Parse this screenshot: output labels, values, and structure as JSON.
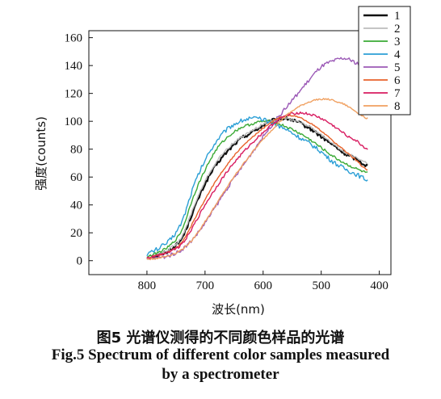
{
  "chart_data": {
    "type": "line",
    "xlabel": "波长(nm)",
    "ylabel": "强度(counts)",
    "xlim": [
      900,
      380
    ],
    "ylim": [
      -10,
      165
    ],
    "x_ticks": [
      800,
      700,
      600,
      500,
      400
    ],
    "y_ticks": [
      0,
      20,
      40,
      60,
      80,
      100,
      120,
      140,
      160
    ],
    "x_reversed": true,
    "legend_position": "top-right",
    "grid": false,
    "series": [
      {
        "name": "1",
        "color": "#111111",
        "width": 2.2,
        "noise": 1.3,
        "x": [
          800,
          780,
          760,
          740,
          720,
          700,
          680,
          660,
          640,
          620,
          600,
          580,
          560,
          540,
          520,
          500,
          480,
          460,
          440,
          420
        ],
        "y": [
          2,
          4,
          8,
          16,
          36,
          55,
          69,
          79,
          87,
          92,
          97,
          101,
          102,
          99,
          95,
          89,
          83,
          77,
          73,
          68
        ]
      },
      {
        "name": "2",
        "color": "#bdbdbd",
        "width": 1.4,
        "noise": 0.8,
        "x": [
          800,
          780,
          760,
          740,
          720,
          700,
          680,
          660,
          640,
          620,
          600,
          580,
          560,
          540,
          520,
          500,
          480,
          460,
          440,
          420
        ],
        "y": [
          3,
          5,
          9,
          17,
          38,
          57,
          71,
          81,
          88,
          93,
          98,
          101,
          102,
          100,
          96,
          90,
          84,
          78,
          74,
          70
        ]
      },
      {
        "name": "3",
        "color": "#3aaa35",
        "width": 1.4,
        "noise": 0.9,
        "x": [
          800,
          780,
          760,
          740,
          720,
          700,
          680,
          660,
          640,
          620,
          600,
          580,
          560,
          540,
          520,
          500,
          480,
          460,
          440,
          420
        ],
        "y": [
          3,
          6,
          11,
          22,
          46,
          65,
          80,
          89,
          95,
          98,
          100,
          99,
          96,
          92,
          87,
          81,
          75,
          70,
          66,
          63
        ]
      },
      {
        "name": "4",
        "color": "#2b9fd6",
        "width": 1.4,
        "noise": 1.6,
        "x": [
          800,
          780,
          760,
          740,
          720,
          700,
          680,
          660,
          640,
          620,
          600,
          580,
          560,
          540,
          520,
          500,
          480,
          460,
          440,
          420
        ],
        "y": [
          5,
          9,
          15,
          28,
          53,
          72,
          86,
          95,
          100,
          102,
          101,
          98,
          94,
          89,
          84,
          78,
          71,
          66,
          62,
          58
        ]
      },
      {
        "name": "5",
        "color": "#9b59b6",
        "width": 1.4,
        "noise": 1.3,
        "x": [
          800,
          780,
          760,
          740,
          720,
          700,
          680,
          660,
          640,
          620,
          600,
          580,
          560,
          540,
          520,
          500,
          480,
          460,
          440,
          420
        ],
        "y": [
          1,
          2,
          4,
          8,
          16,
          27,
          40,
          53,
          65,
          77,
          89,
          100,
          110,
          120,
          130,
          139,
          143,
          145,
          142,
          138
        ]
      },
      {
        "name": "6",
        "color": "#e8632b",
        "width": 1.4,
        "noise": 0.5,
        "x": [
          800,
          780,
          760,
          740,
          720,
          700,
          680,
          660,
          640,
          620,
          600,
          580,
          560,
          540,
          520,
          500,
          480,
          460,
          440,
          420
        ],
        "y": [
          2,
          4,
          7,
          13,
          28,
          44,
          58,
          70,
          80,
          88,
          95,
          101,
          104,
          103,
          99,
          93,
          86,
          79,
          72,
          65
        ]
      },
      {
        "name": "7",
        "color": "#d81b60",
        "width": 1.4,
        "noise": 0.9,
        "x": [
          800,
          780,
          760,
          740,
          720,
          700,
          680,
          660,
          640,
          620,
          600,
          580,
          560,
          540,
          520,
          500,
          480,
          460,
          440,
          420
        ],
        "y": [
          2,
          4,
          7,
          12,
          25,
          40,
          53,
          65,
          75,
          84,
          92,
          99,
          104,
          106,
          105,
          102,
          97,
          91,
          86,
          80
        ]
      },
      {
        "name": "8",
        "color": "#f0a060",
        "width": 1.4,
        "noise": 0.6,
        "x": [
          800,
          780,
          760,
          740,
          720,
          700,
          680,
          660,
          640,
          620,
          600,
          580,
          560,
          540,
          520,
          500,
          480,
          460,
          440,
          420
        ],
        "y": [
          1,
          2,
          4,
          8,
          16,
          28,
          41,
          54,
          66,
          77,
          87,
          96,
          104,
          110,
          114,
          116,
          115,
          112,
          107,
          102
        ]
      }
    ]
  },
  "captions": {
    "cn": "图5 光谱仪测得的不同颜色样品的光谱",
    "en_line1": "Fig.5 Spectrum of different color samples measured",
    "en_line2": "by a spectrometer"
  }
}
